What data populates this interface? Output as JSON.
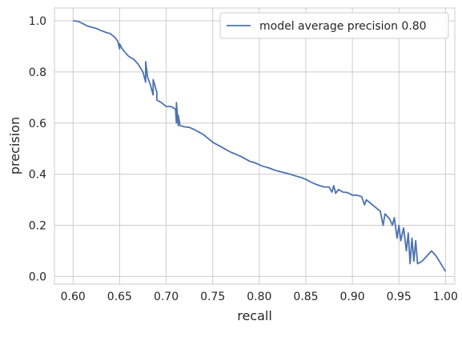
{
  "chart_data": {
    "type": "line",
    "title": "",
    "xlabel": "recall",
    "ylabel": "precision",
    "xlim": [
      0.58,
      1.01
    ],
    "ylim": [
      -0.03,
      1.05
    ],
    "xticks": [
      0.6,
      0.65,
      0.7,
      0.75,
      0.8,
      0.85,
      0.9,
      0.95,
      1.0
    ],
    "xtick_labels": [
      "0.60",
      "0.65",
      "0.70",
      "0.75",
      "0.80",
      "0.85",
      "0.90",
      "0.95",
      "1.00"
    ],
    "yticks": [
      0.0,
      0.2,
      0.4,
      0.6,
      0.8,
      1.0
    ],
    "ytick_labels": [
      "0.0",
      "0.2",
      "0.4",
      "0.6",
      "0.8",
      "1.0"
    ],
    "grid": true,
    "legend_position": "top-right",
    "series": [
      {
        "name": "model average precision 0.80",
        "color": "#4c72b0",
        "x": [
          0.6,
          0.605,
          0.61,
          0.615,
          0.62,
          0.625,
          0.63,
          0.635,
          0.64,
          0.645,
          0.648,
          0.65,
          0.65,
          0.652,
          0.655,
          0.66,
          0.665,
          0.67,
          0.675,
          0.678,
          0.678,
          0.68,
          0.683,
          0.686,
          0.686,
          0.69,
          0.69,
          0.695,
          0.7,
          0.705,
          0.71,
          0.711,
          0.711,
          0.713,
          0.713,
          0.715,
          0.72,
          0.725,
          0.73,
          0.735,
          0.74,
          0.745,
          0.75,
          0.755,
          0.76,
          0.765,
          0.77,
          0.775,
          0.78,
          0.785,
          0.79,
          0.795,
          0.8,
          0.805,
          0.81,
          0.815,
          0.82,
          0.825,
          0.83,
          0.835,
          0.84,
          0.845,
          0.85,
          0.855,
          0.86,
          0.865,
          0.87,
          0.875,
          0.878,
          0.88,
          0.882,
          0.885,
          0.89,
          0.895,
          0.9,
          0.905,
          0.91,
          0.913,
          0.915,
          0.92,
          0.925,
          0.93,
          0.933,
          0.935,
          0.94,
          0.943,
          0.945,
          0.948,
          0.95,
          0.952,
          0.955,
          0.958,
          0.96,
          0.962,
          0.964,
          0.966,
          0.968,
          0.97,
          0.975,
          0.98,
          0.985,
          0.99,
          0.995,
          1.0
        ],
        "y": [
          1.0,
          0.998,
          0.99,
          0.98,
          0.975,
          0.97,
          0.962,
          0.955,
          0.95,
          0.935,
          0.92,
          0.89,
          0.91,
          0.895,
          0.88,
          0.86,
          0.85,
          0.83,
          0.8,
          0.76,
          0.84,
          0.78,
          0.75,
          0.71,
          0.77,
          0.72,
          0.69,
          0.68,
          0.665,
          0.665,
          0.655,
          0.6,
          0.68,
          0.59,
          0.63,
          0.59,
          0.585,
          0.583,
          0.575,
          0.565,
          0.555,
          0.54,
          0.525,
          0.515,
          0.505,
          0.495,
          0.485,
          0.478,
          0.47,
          0.46,
          0.45,
          0.445,
          0.437,
          0.43,
          0.425,
          0.418,
          0.412,
          0.408,
          0.403,
          0.398,
          0.392,
          0.387,
          0.38,
          0.37,
          0.362,
          0.355,
          0.35,
          0.35,
          0.33,
          0.355,
          0.325,
          0.34,
          0.33,
          0.328,
          0.318,
          0.318,
          0.312,
          0.28,
          0.3,
          0.285,
          0.27,
          0.255,
          0.2,
          0.245,
          0.225,
          0.2,
          0.23,
          0.15,
          0.2,
          0.14,
          0.19,
          0.1,
          0.17,
          0.05,
          0.15,
          0.06,
          0.14,
          0.05,
          0.06,
          0.08,
          0.1,
          0.08,
          0.05,
          0.02
        ]
      }
    ]
  }
}
